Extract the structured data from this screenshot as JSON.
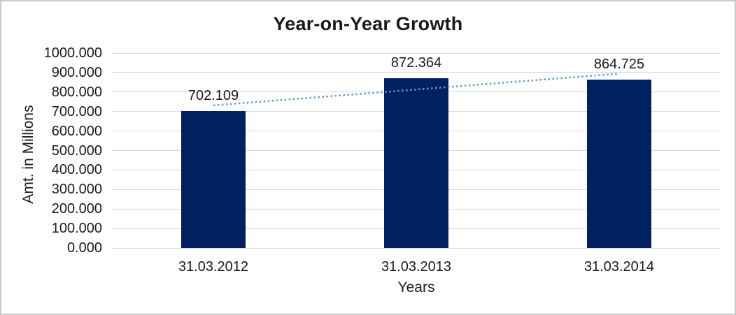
{
  "chart_data": {
    "type": "bar",
    "title": "Year-on-Year Growth",
    "xlabel": "Years",
    "ylabel": "Amt. in Millions",
    "categories": [
      "31.03.2012",
      "31.03.2013",
      "31.03.2014"
    ],
    "values": [
      702.109,
      872.364,
      864.725
    ],
    "value_labels": [
      "702.109",
      "872.364",
      "864.725"
    ],
    "ylim": [
      0,
      1000
    ],
    "ytick_step": 100,
    "ytick_labels": [
      "0.000",
      "100.000",
      "200.000",
      "300.000",
      "400.000",
      "500.000",
      "600.000",
      "700.000",
      "800.000",
      "900.000",
      "1000.000"
    ],
    "grid": "horizontal-gridlines",
    "legend_position": "none",
    "trendline": {
      "type": "linear",
      "style": "dotted"
    },
    "colors": {
      "bar": "#002060",
      "trendline": "#5B9BD5",
      "gridline": "#D9D9D9",
      "text": "#1A1A1A",
      "border": "#CBCBCB",
      "background": "#FFFFFF"
    }
  }
}
